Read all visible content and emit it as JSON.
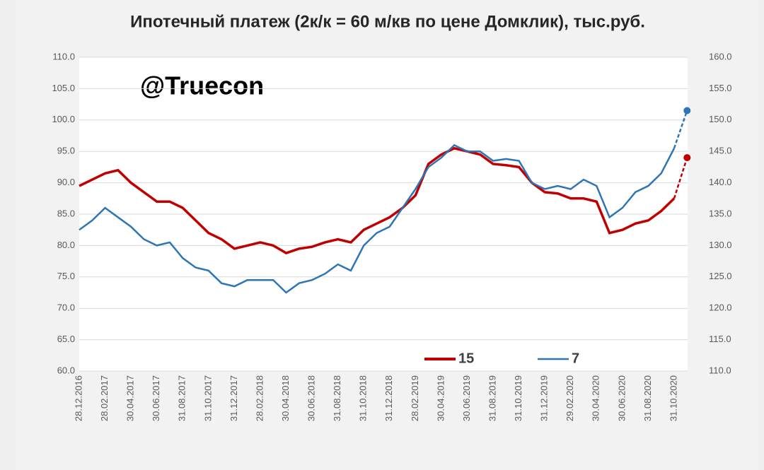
{
  "chart_data": {
    "type": "line",
    "title": "Ипотечный платеж (2к/к = 60 м/кв по цене Домклик), тыс.руб.",
    "annotation": "@Truecon",
    "categories": [
      "28.12.2016",
      null,
      "28.02.2017",
      null,
      "30.04.2017",
      null,
      "30.06.2017",
      null,
      "31.08.2017",
      null,
      "31.10.2017",
      null,
      "31.12.2017",
      null,
      "28.02.2018",
      null,
      "30.04.2018",
      null,
      "30.06.2018",
      null,
      "31.08.2018",
      null,
      "31.10.2018",
      null,
      "31.12.2018",
      null,
      "28.02.2019",
      null,
      "30.04.2019",
      null,
      "30.06.2019",
      null,
      "31.08.2019",
      null,
      "31.10.2019",
      null,
      "31.12.2019",
      null,
      "29.02.2020",
      null,
      "30.04.2020",
      null,
      "30.06.2020",
      null,
      "31.08.2020",
      null,
      "31.10.2020",
      null
    ],
    "series": [
      {
        "name": "15",
        "color": "#c00000",
        "axis": "y",
        "values": [
          89.5,
          90.5,
          91.5,
          92,
          90,
          88.5,
          87,
          87,
          86,
          84,
          82,
          81,
          79.5,
          80,
          80.5,
          80,
          78.8,
          79.5,
          79.8,
          80.5,
          81,
          80.5,
          82.5,
          83.5,
          84.5,
          86,
          88,
          93,
          94.5,
          95.5,
          95,
          94.5,
          93,
          92.8,
          92.5,
          90,
          88.5,
          88.3,
          87.5,
          87.5,
          87,
          82,
          82.5,
          83.5,
          84,
          85.5,
          87.5,
          94
        ]
      },
      {
        "name": "7",
        "color": "#2e75b6",
        "axis": "y2",
        "values": [
          132.5,
          134,
          136,
          134.5,
          133,
          131,
          130,
          130.5,
          128,
          126.5,
          126,
          124,
          123.5,
          124.5,
          124.5,
          124.5,
          122.5,
          124,
          124.5,
          125.5,
          127,
          126,
          130,
          132,
          133,
          136,
          139,
          142.5,
          144,
          146,
          145,
          145,
          143.5,
          143.8,
          143.5,
          140,
          139,
          139.5,
          139,
          140.5,
          139.5,
          134.5,
          136,
          138.5,
          139.5,
          141.5,
          145.5,
          151.5
        ]
      }
    ],
    "last_segment_dashed": true,
    "ylim": [
      60,
      110
    ],
    "yticks": [
      {
        "value": 60,
        "label": "60.0"
      },
      {
        "value": 65,
        "label": "65.0"
      },
      {
        "value": 70,
        "label": "70.0"
      },
      {
        "value": 75,
        "label": "75.0"
      },
      {
        "value": 80,
        "label": "80.0"
      },
      {
        "value": 85,
        "label": "85.0"
      },
      {
        "value": 90,
        "label": "90.0"
      },
      {
        "value": 95,
        "label": "95.0"
      },
      {
        "value": 100,
        "label": "100.0"
      },
      {
        "value": 105,
        "label": "105.0"
      },
      {
        "value": 110,
        "label": "110.0"
      }
    ],
    "y2lim": [
      110,
      160
    ],
    "y2ticks": [
      {
        "value": 110,
        "label": "110.0"
      },
      {
        "value": 115,
        "label": "115.0"
      },
      {
        "value": 120,
        "label": "120.0"
      },
      {
        "value": 125,
        "label": "125.0"
      },
      {
        "value": 130,
        "label": "130.0"
      },
      {
        "value": 135,
        "label": "135.0"
      },
      {
        "value": 140,
        "label": "140.0"
      },
      {
        "value": 145,
        "label": "145.0"
      },
      {
        "value": 150,
        "label": "150.0"
      },
      {
        "value": 155,
        "label": "155.0"
      },
      {
        "value": 160,
        "label": "160.0"
      }
    ],
    "grid": true,
    "legend": "bottom"
  }
}
